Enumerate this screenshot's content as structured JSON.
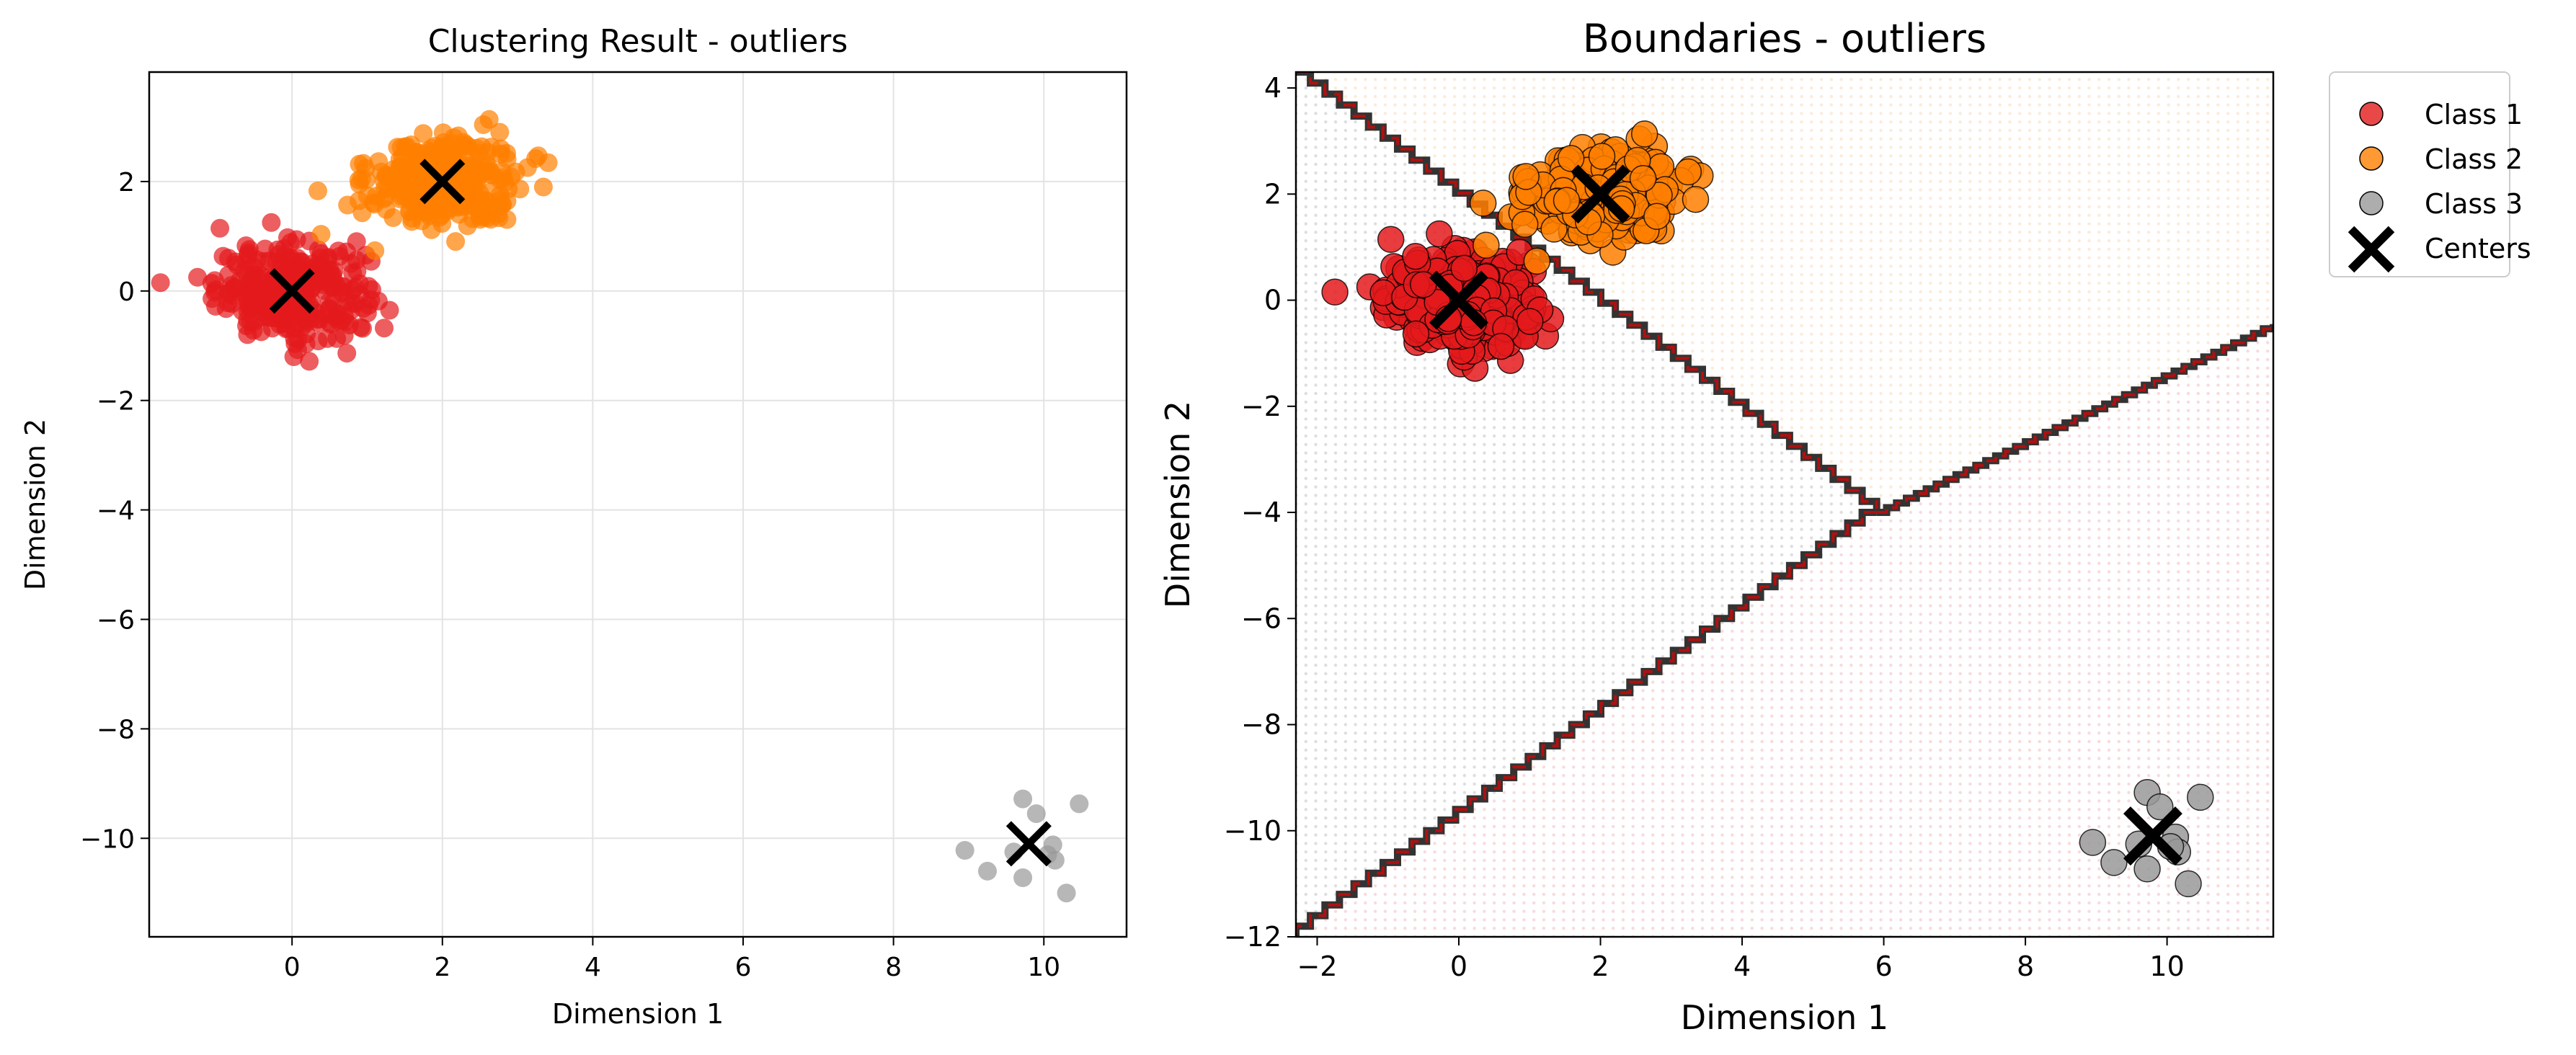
{
  "chart_data": [
    {
      "type": "scatter",
      "title": "Clustering Result - outliers",
      "xlabel": "Dimension 1",
      "ylabel": "Dimension 2",
      "xlim": [
        -1.9,
        11.1
      ],
      "ylim": [
        -11.8,
        4.0
      ],
      "xticks": [
        0,
        2,
        4,
        6,
        8,
        10
      ],
      "yticks": [
        2,
        0,
        -2,
        -4,
        -6,
        -8,
        -10
      ],
      "grid": true,
      "legend": null,
      "series": [
        {
          "color": "#e41a1c",
          "center": [
            0,
            0
          ],
          "spread": [
            0.5,
            0.42
          ],
          "count": 320
        },
        {
          "color": "#ff7f00",
          "center": [
            2,
            2
          ],
          "spread": [
            0.5,
            0.42
          ],
          "count": 320
        },
        {
          "color": "#999999",
          "center": [
            9.8,
            -10.1
          ],
          "points": [
            [
              9.72,
              -9.28
            ],
            [
              9.9,
              -9.55
            ],
            [
              10.47,
              -9.37
            ],
            [
              8.95,
              -10.22
            ],
            [
              9.25,
              -10.6
            ],
            [
              9.72,
              -10.72
            ],
            [
              10.12,
              -10.12
            ],
            [
              10.15,
              -10.4
            ],
            [
              10.3,
              -11.0
            ],
            [
              9.6,
              -10.25
            ],
            [
              10.05,
              -10.3
            ]
          ]
        }
      ],
      "centers": [
        [
          0,
          0
        ],
        [
          2,
          2
        ],
        [
          9.8,
          -10.1
        ]
      ]
    },
    {
      "type": "scatter",
      "title": "Boundaries - outliers",
      "xlabel": "Dimension 1",
      "ylabel": "Dimension 2",
      "xlim": [
        -2.3,
        11.5
      ],
      "ylim": [
        -12.0,
        4.3
      ],
      "xticks": [
        -2,
        0,
        2,
        4,
        6,
        8,
        10
      ],
      "yticks": [
        4,
        2,
        0,
        -2,
        -4,
        -6,
        -8,
        -10,
        -12
      ],
      "grid": false,
      "legend": {
        "placement": "outside-top-right",
        "entries": [
          "Class 1",
          "Class 2",
          "Class 3",
          "Centers"
        ]
      },
      "series": [
        {
          "name": "Class 1",
          "color": "#e41a1c",
          "center": [
            0,
            0
          ],
          "spread": [
            0.5,
            0.42
          ],
          "count": 320
        },
        {
          "name": "Class 2",
          "color": "#ff7f00",
          "center": [
            2,
            2
          ],
          "spread": [
            0.5,
            0.42
          ],
          "count": 320
        },
        {
          "name": "Class 3",
          "color": "#999999",
          "center": [
            9.8,
            -10.1
          ],
          "points": [
            [
              9.72,
              -9.28
            ],
            [
              9.9,
              -9.55
            ],
            [
              10.47,
              -9.37
            ],
            [
              8.95,
              -10.22
            ],
            [
              9.25,
              -10.6
            ],
            [
              9.72,
              -10.72
            ],
            [
              10.12,
              -10.12
            ],
            [
              10.15,
              -10.4
            ],
            [
              10.3,
              -11.0
            ],
            [
              9.6,
              -10.25
            ],
            [
              10.05,
              -10.3
            ]
          ]
        }
      ],
      "centers": [
        [
          0,
          0
        ],
        [
          2,
          2
        ],
        [
          9.8,
          -10.1
        ]
      ],
      "boundaries": [
        [
          [
            -2.3,
            4.3
          ],
          [
            5.9,
            -4.0
          ]
        ],
        [
          [
            5.9,
            -4.0
          ],
          [
            11.5,
            -0.45
          ]
        ],
        [
          [
            5.9,
            -4.0
          ],
          [
            -2.3,
            -12.0
          ]
        ]
      ],
      "region_colors": {
        "class_1": "#d0d0d0",
        "class_2": "#fbe3c8",
        "class_3": "#f5cccc"
      }
    }
  ]
}
